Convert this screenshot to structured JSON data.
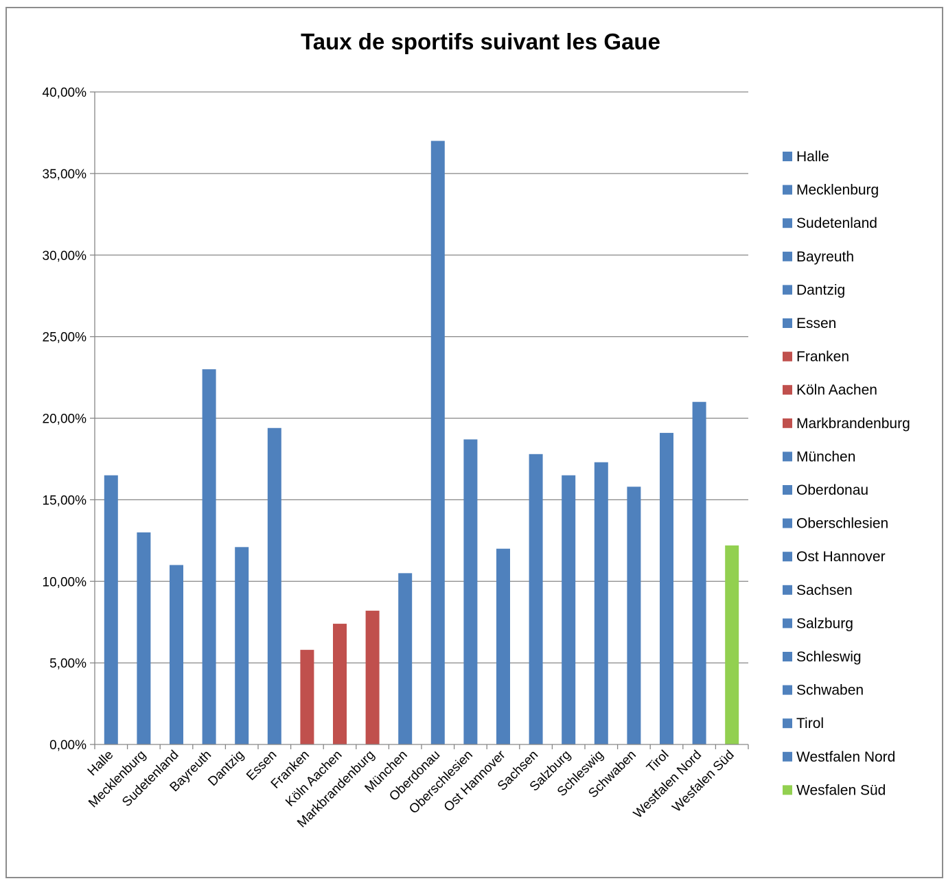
{
  "chart_data": {
    "type": "bar",
    "title": "Taux de sportifs suivant les Gaue",
    "xlabel": "",
    "ylabel": "",
    "ylim": [
      0,
      0.4
    ],
    "ytick_values": [
      0,
      0.05,
      0.1,
      0.15,
      0.2,
      0.25,
      0.3,
      0.35,
      0.4
    ],
    "ytick_labels": [
      "0,00%",
      "5,00%",
      "10,00%",
      "15,00%",
      "20,00%",
      "25,00%",
      "30,00%",
      "35,00%",
      "40,00%"
    ],
    "grid": true,
    "legend_position": "right",
    "categories": [
      "Halle",
      "Mecklenburg",
      "Sudetenland",
      "Bayreuth",
      "Dantzig",
      "Essen",
      "Franken",
      "Köln Aachen",
      "Markbrandenburg",
      "München",
      "Oberdonau",
      "Oberschlesien",
      "Ost Hannover",
      "Sachsen",
      "Salzburg",
      "Schleswig",
      "Schwaben",
      "Tirol",
      "Westfalen Nord",
      "Wesfalen Süd"
    ],
    "values": [
      0.165,
      0.13,
      0.11,
      0.23,
      0.121,
      0.194,
      0.058,
      0.074,
      0.082,
      0.105,
      0.37,
      0.187,
      0.12,
      0.178,
      0.165,
      0.173,
      0.158,
      0.191,
      0.21,
      0.122
    ],
    "colors": [
      "#4f81bd",
      "#4f81bd",
      "#4f81bd",
      "#4f81bd",
      "#4f81bd",
      "#4f81bd",
      "#c0504d",
      "#c0504d",
      "#c0504d",
      "#4f81bd",
      "#4f81bd",
      "#4f81bd",
      "#4f81bd",
      "#4f81bd",
      "#4f81bd",
      "#4f81bd",
      "#4f81bd",
      "#4f81bd",
      "#4f81bd",
      "#92d050"
    ]
  }
}
